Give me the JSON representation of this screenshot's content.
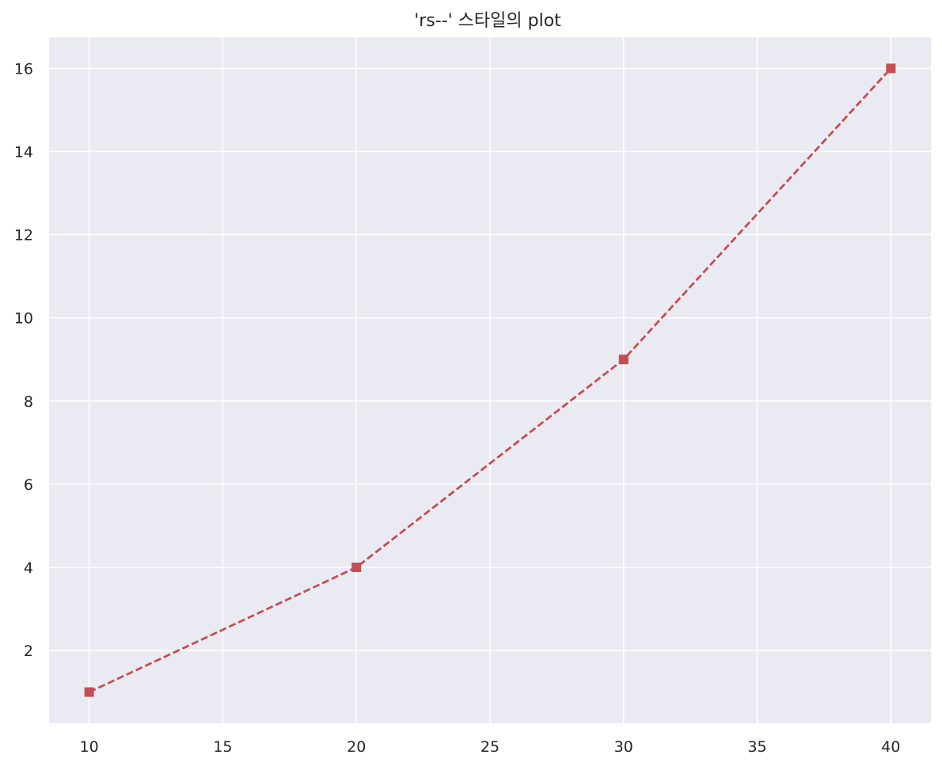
{
  "chart_data": {
    "type": "line",
    "title": "'rs--' 스타일의 plot",
    "xlabel": "",
    "ylabel": "",
    "x": [
      10,
      20,
      30,
      40
    ],
    "series": [
      {
        "values": [
          1,
          4,
          9,
          16
        ],
        "color": "#c44e52",
        "line_style": "dashed",
        "marker": "square"
      }
    ],
    "xlim": [
      8.5,
      41.5
    ],
    "ylim": [
      0.25,
      16.75
    ],
    "xticks": [
      10,
      15,
      20,
      25,
      30,
      35,
      40
    ],
    "yticks": [
      2,
      4,
      6,
      8,
      10,
      12,
      14,
      16
    ],
    "grid": true,
    "background_color": "#eaeaf2",
    "grid_color": "#ffffff"
  }
}
